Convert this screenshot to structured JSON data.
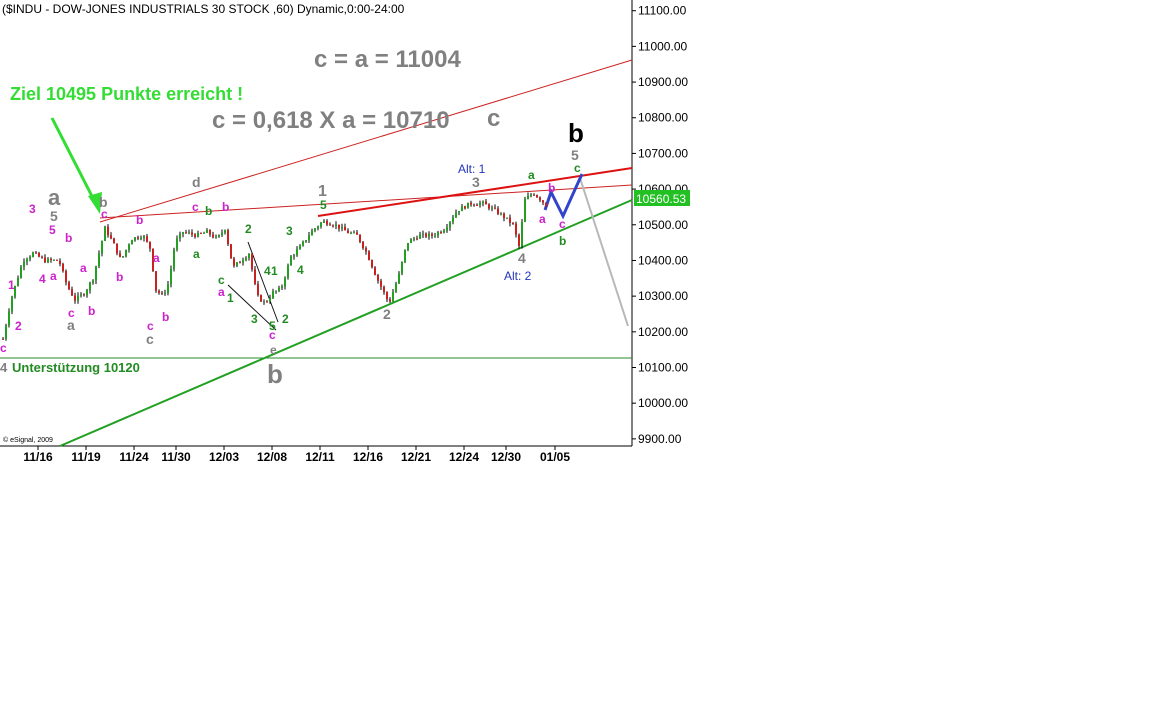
{
  "header": {
    "title": "($INDU - DOW-JONES INDUSTRIALS 30 STOCK ,60) Dynamic,0:00-24:00"
  },
  "copyright": "© eSignal, 2009",
  "last_price_badge": {
    "text": "10560.53",
    "color": "#22c022"
  },
  "chart_data": {
    "type": "candlestick",
    "ylim": [
      9880,
      11130
    ],
    "ylabel_side": "right",
    "grid": false,
    "y_ticks": [
      "11100.00",
      "11000.00",
      "10900.00",
      "10800.00",
      "10700.00",
      "10600.00",
      "10500.00",
      "10400.00",
      "10300.00",
      "10200.00",
      "10100.00",
      "10000.00",
      "9900.00"
    ],
    "x_ticks": [
      "11/16",
      "11/19",
      "11/24",
      "11/30",
      "12/03",
      "12/08",
      "12/11",
      "12/16",
      "12/21",
      "12/24",
      "12/30",
      "01/05"
    ],
    "last_value": 10560.53,
    "support_level": 10120,
    "candle_colors": {
      "up": "#22a022",
      "down": "#cc2020"
    },
    "annotations": {
      "main_text": [
        {
          "text": "c = a = 11004",
          "color": "#808080"
        },
        {
          "text": "c = 0,618 X a = 10710",
          "color": "#808080"
        },
        {
          "text": "c",
          "color": "#808080"
        },
        {
          "text": "Ziel 10495 Punkte erreicht !",
          "color": "#33dd33"
        },
        {
          "text": "Unterstützung 10120",
          "color": "#228b22"
        },
        {
          "text": "4",
          "color": "#808080"
        },
        {
          "text": "Alt: 1",
          "color": "#2233bb"
        },
        {
          "text": "Alt: 2",
          "color": "#2233bb"
        }
      ],
      "wave_labels": [
        {
          "text": "a",
          "color": "#808080"
        },
        {
          "text": "5",
          "color": "#808080"
        },
        {
          "text": "b",
          "color": "#808080"
        },
        {
          "text": "d",
          "color": "#808080"
        },
        {
          "text": "1",
          "color": "#808080"
        },
        {
          "text": "5",
          "color": "#228b22"
        },
        {
          "text": "3",
          "color": "#808080"
        },
        {
          "text": "a",
          "color": "#228b22"
        },
        {
          "text": "b",
          "color": "#000000"
        },
        {
          "text": "5",
          "color": "#808080"
        },
        {
          "text": "c",
          "color": "#228b22"
        },
        {
          "text": "b",
          "color": "#cc22cc"
        },
        {
          "text": "a",
          "color": "#cc22cc"
        },
        {
          "text": "c",
          "color": "#cc22cc"
        },
        {
          "text": "b",
          "color": "#228b22"
        },
        {
          "text": "4",
          "color": "#808080"
        },
        {
          "text": "2",
          "color": "#808080"
        },
        {
          "text": "b",
          "color": "#808080"
        },
        {
          "text": "e",
          "color": "#808080"
        },
        {
          "text": "c",
          "color": "#cc22cc"
        },
        {
          "text": "5",
          "color": "#228b22"
        },
        {
          "text": "3",
          "color": "#228b22"
        },
        {
          "text": "2",
          "color": "#228b22"
        },
        {
          "text": "1",
          "color": "#228b22"
        },
        {
          "text": "4",
          "color": "#228b22"
        },
        {
          "text": "1",
          "color": "#228b22"
        },
        {
          "text": "2",
          "color": "#228b22"
        },
        {
          "text": "3",
          "color": "#228b22"
        },
        {
          "text": "4",
          "color": "#228b22"
        },
        {
          "text": "a",
          "color": "#cc22cc"
        },
        {
          "text": "c",
          "color": "#228b22"
        },
        {
          "text": "a",
          "color": "#228b22"
        },
        {
          "text": "b",
          "color": "#228b22"
        },
        {
          "text": "c",
          "color": "#cc22cc"
        },
        {
          "text": "b",
          "color": "#cc22cc"
        },
        {
          "text": "c",
          "color": "#808080"
        },
        {
          "text": "b",
          "color": "#cc22cc"
        },
        {
          "text": "c",
          "color": "#cc22cc"
        },
        {
          "text": "a",
          "color": "#cc22cc"
        },
        {
          "text": "a",
          "color": "#cc22cc"
        },
        {
          "text": "b",
          "color": "#cc22cc"
        },
        {
          "text": "b",
          "color": "#cc22cc"
        },
        {
          "text": "c",
          "color": "#cc22cc"
        },
        {
          "text": "a",
          "color": "#808080"
        },
        {
          "text": "b",
          "color": "#cc22cc"
        },
        {
          "text": "c",
          "color": "#cc22cc"
        },
        {
          "text": "b",
          "color": "#cc22cc"
        },
        {
          "text": "a",
          "color": "#cc22cc"
        },
        {
          "text": "4",
          "color": "#cc22cc"
        },
        {
          "text": "5",
          "color": "#cc22cc"
        },
        {
          "text": "3",
          "color": "#cc22cc"
        },
        {
          "text": "1",
          "color": "#cc22cc"
        },
        {
          "text": "2",
          "color": "#cc22cc"
        },
        {
          "text": "c",
          "color": "#cc22cc"
        }
      ]
    }
  }
}
